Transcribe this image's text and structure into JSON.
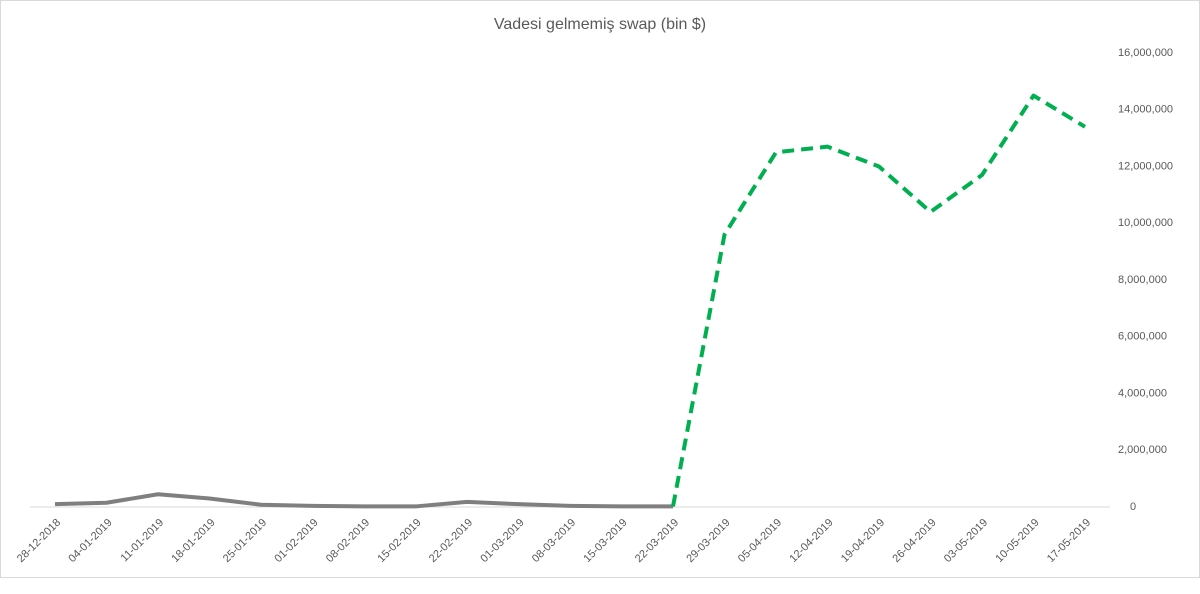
{
  "chart_data": {
    "type": "line",
    "title": "Vadesi gelmemiş swap (bin $)",
    "categories": [
      "28-12-2018",
      "04-01-2019",
      "11-01-2019",
      "18-01-2019",
      "25-01-2019",
      "01-02-2019",
      "08-02-2019",
      "15-02-2019",
      "22-02-2019",
      "01-03-2019",
      "08-03-2019",
      "15-03-2019",
      "22-03-2019",
      "29-03-2019",
      "05-04-2019",
      "12-04-2019",
      "19-04-2019",
      "26-04-2019",
      "03-05-2019",
      "10-05-2019",
      "17-05-2019"
    ],
    "series": [
      {
        "color": "#7f7f7f",
        "dash": false,
        "values": [
          100000,
          150000,
          450000,
          300000,
          80000,
          40000,
          20000,
          20000,
          180000,
          100000,
          40000,
          20000,
          20000,
          null,
          null,
          null,
          null,
          null,
          null,
          null,
          null
        ]
      },
      {
        "color": "#00b050",
        "dash": true,
        "values": [
          null,
          null,
          null,
          null,
          null,
          null,
          null,
          null,
          null,
          null,
          null,
          null,
          20000,
          9600000,
          12500000,
          12700000,
          12000000,
          10400000,
          11700000,
          14500000,
          13400000
        ]
      }
    ],
    "ylim": [
      0,
      16000000
    ],
    "yticks": [
      0,
      {
        "value": 2000000,
        "label": "2,000,000"
      },
      {
        "value": 4000000,
        "label": "4,000,000"
      },
      {
        "value": 6000000,
        "label": "6,000,000"
      },
      {
        "value": 8000000,
        "label": "8,000,000"
      },
      {
        "value": 10000000,
        "label": "10,000,000"
      },
      {
        "value": 12000000,
        "label": "12,000,000"
      },
      {
        "value": 14000000,
        "label": "14,000,000"
      },
      {
        "value": 16000000,
        "label": "16,000,000"
      }
    ],
    "yaxis_side": "right",
    "grid": false
  }
}
